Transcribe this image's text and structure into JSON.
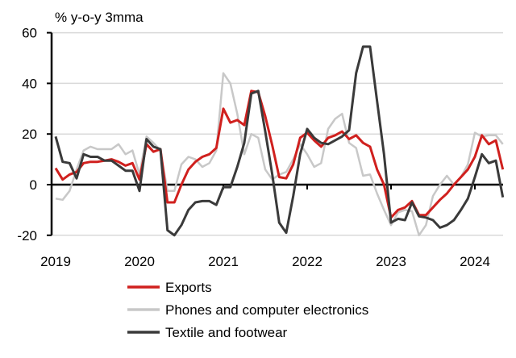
{
  "chart_data": {
    "type": "line",
    "title": "",
    "ylabel": "% y-o-y 3mma",
    "xlabel": "",
    "ylim": [
      -20,
      60
    ],
    "yticks": [
      -20,
      0,
      20,
      40,
      60
    ],
    "xticks": [
      "2019",
      "2020",
      "2021",
      "2022",
      "2023",
      "2024"
    ],
    "x_start": "2019-01",
    "x_frequency": "monthly",
    "grid": true,
    "legend_placement": "bottom",
    "series": [
      {
        "name": "Exports",
        "color": "#d0201e",
        "values": [
          6.5,
          2,
          4,
          5,
          8.5,
          9,
          9,
          9.5,
          10,
          9,
          7.5,
          8.5,
          2,
          16,
          13,
          14,
          -7,
          -7,
          0,
          6,
          9,
          11,
          12,
          14.5,
          30,
          24.5,
          25.5,
          23.5,
          37,
          36.5,
          27,
          15.5,
          3,
          2.5,
          8,
          18.5,
          20.5,
          17.5,
          15,
          18.5,
          19.5,
          21,
          18,
          19.5,
          16.5,
          15,
          6,
          0,
          -13,
          -10,
          -9,
          -6.5,
          -12,
          -12,
          -9,
          -6,
          -3.5,
          0,
          3,
          6,
          11,
          19.5,
          16,
          17.5,
          6
        ]
      },
      {
        "name": "Phones and computer electronics",
        "color": "#c8c8c8",
        "values": [
          -5.5,
          -6,
          -2.5,
          6,
          13.5,
          15,
          14,
          14,
          14,
          16,
          12,
          13.5,
          4,
          19,
          16.5,
          13.5,
          -2.5,
          -2.5,
          8,
          11,
          10,
          7,
          8.5,
          13.5,
          44,
          40,
          28,
          12,
          20,
          18.5,
          6,
          2,
          4,
          5,
          10,
          16,
          12,
          7,
          8.5,
          22,
          26,
          28,
          16.5,
          14.5,
          3.5,
          4,
          -3.5,
          -10,
          -16,
          -11,
          -10,
          -10.5,
          -20,
          -16,
          -4.5,
          0,
          3.5,
          0,
          3,
          8,
          20.5,
          19,
          19.5,
          19.5,
          16
        ]
      },
      {
        "name": "Textile and footwear",
        "color": "#3a3a3a",
        "values": [
          19,
          9,
          8.5,
          2.5,
          12,
          11,
          11,
          9.5,
          9.5,
          7.5,
          5.5,
          5.5,
          -2.5,
          18,
          15,
          14,
          -18,
          -20,
          -16,
          -10,
          -7,
          -6.5,
          -6.5,
          -8,
          -1,
          -1,
          7,
          16.5,
          36,
          37,
          21,
          4,
          -15,
          -19,
          -4.5,
          12,
          22,
          18.5,
          16.5,
          16,
          17.5,
          19,
          21.5,
          44,
          54.5,
          54.5,
          33,
          12,
          -15,
          -13.5,
          -14,
          -7,
          -12.5,
          -13,
          -14,
          -17,
          -16,
          -14,
          -10,
          -5.5,
          3,
          12,
          8.5,
          9.5,
          -5
        ]
      }
    ]
  }
}
